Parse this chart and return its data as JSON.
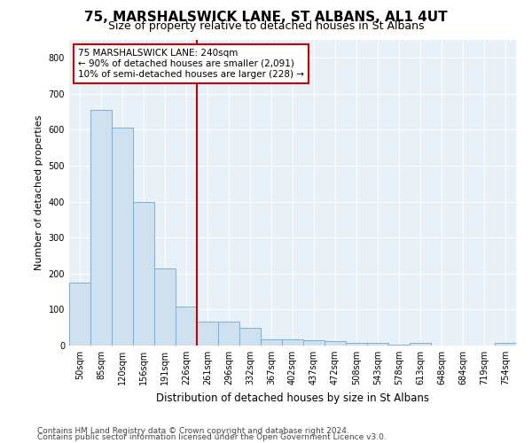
{
  "title": "75, MARSHALSWICK LANE, ST ALBANS, AL1 4UT",
  "subtitle": "Size of property relative to detached houses in St Albans",
  "xlabel": "Distribution of detached houses by size in St Albans",
  "ylabel": "Number of detached properties",
  "bar_labels": [
    "50sqm",
    "85sqm",
    "120sqm",
    "156sqm",
    "191sqm",
    "226sqm",
    "261sqm",
    "296sqm",
    "332sqm",
    "367sqm",
    "402sqm",
    "437sqm",
    "472sqm",
    "508sqm",
    "543sqm",
    "578sqm",
    "613sqm",
    "648sqm",
    "684sqm",
    "719sqm",
    "754sqm"
  ],
  "bar_values": [
    175,
    655,
    607,
    400,
    215,
    108,
    67,
    67,
    50,
    18,
    17,
    16,
    13,
    8,
    8,
    3,
    8,
    0,
    0,
    0,
    7
  ],
  "bar_color": "#cfe0ef",
  "bar_edge_color": "#7aafd4",
  "vline_x": 5.5,
  "vline_color": "#cc0000",
  "annotation_text": "75 MARSHALSWICK LANE: 240sqm\n← 90% of detached houses are smaller (2,091)\n10% of semi-detached houses are larger (228) →",
  "annotation_box_facecolor": "#ffffff",
  "annotation_box_edgecolor": "#cc0000",
  "ylim": [
    0,
    850
  ],
  "yticks": [
    0,
    100,
    200,
    300,
    400,
    500,
    600,
    700,
    800
  ],
  "plot_bg_color": "#e8f0f8",
  "grid_color": "#ffffff",
  "footer_line1": "Contains HM Land Registry data © Crown copyright and database right 2024.",
  "footer_line2": "Contains public sector information licensed under the Open Government Licence v3.0.",
  "title_fontsize": 11,
  "subtitle_fontsize": 9,
  "tick_fontsize": 7,
  "ylabel_fontsize": 8,
  "xlabel_fontsize": 8.5,
  "annotation_fontsize": 7.5,
  "footer_fontsize": 6.5
}
